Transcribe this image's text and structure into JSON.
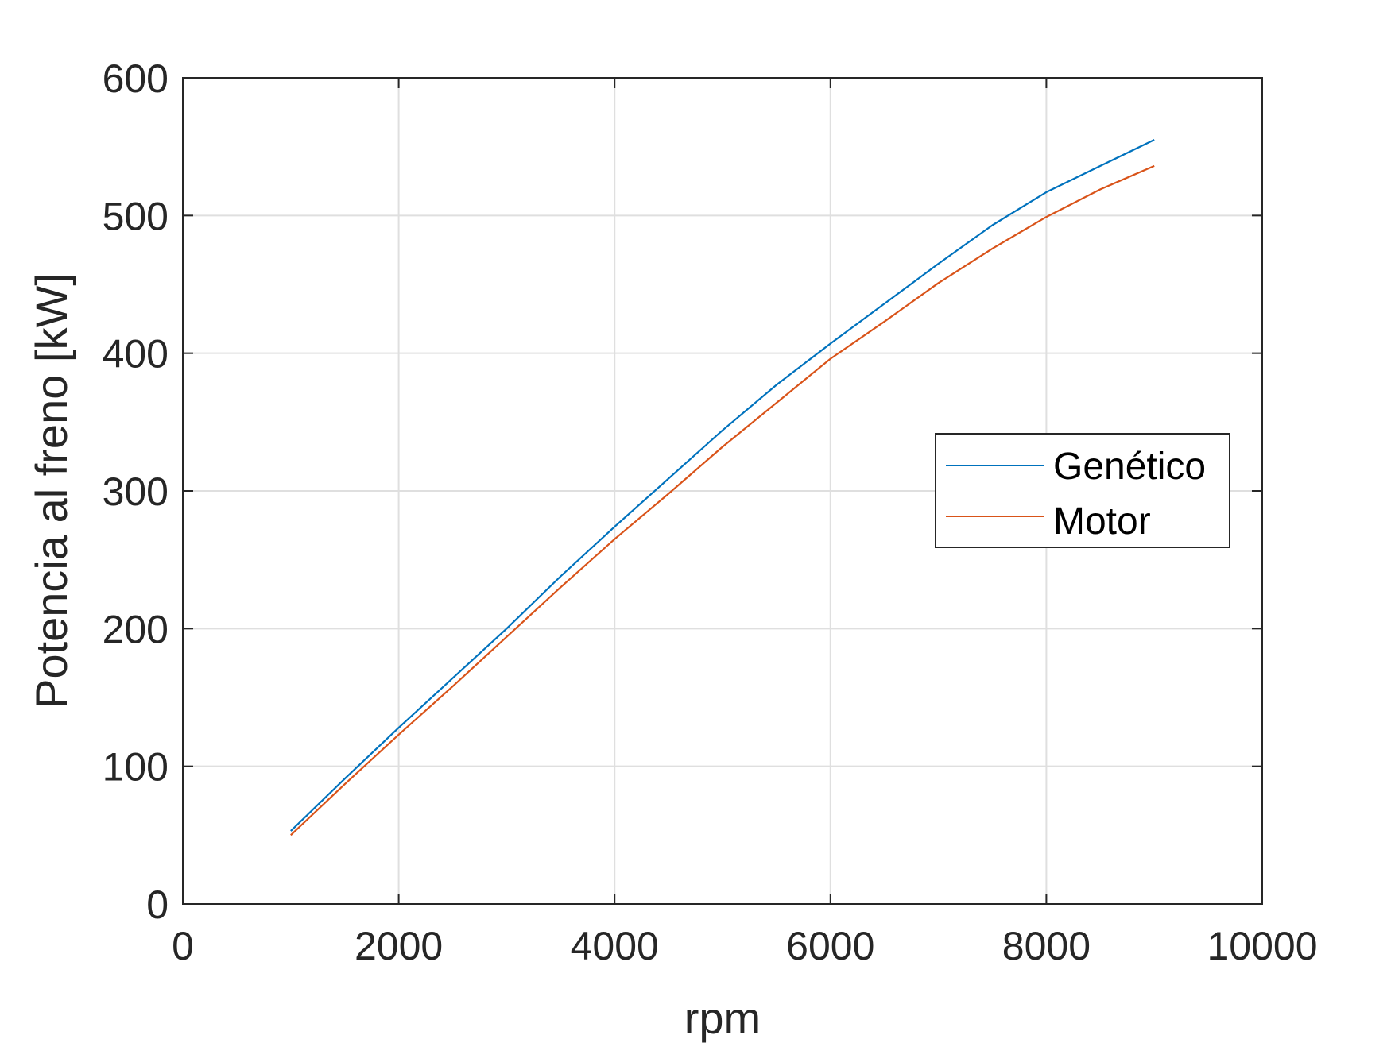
{
  "chart_data": {
    "type": "line",
    "xlabel": "rpm",
    "ylabel": "Potencia al freno [kW]",
    "xlim": [
      0,
      10000
    ],
    "ylim": [
      0,
      600
    ],
    "xticks": [
      0,
      2000,
      4000,
      6000,
      8000,
      10000
    ],
    "yticks": [
      0,
      100,
      200,
      300,
      400,
      500,
      600
    ],
    "xtick_labels": [
      "0",
      "2000",
      "4000",
      "6000",
      "8000",
      "10000"
    ],
    "ytick_labels": [
      "0",
      "100",
      "200",
      "300",
      "400",
      "500",
      "600"
    ],
    "grid": true,
    "legend_position": "right",
    "series": [
      {
        "name": "Genético",
        "color": "#0072BD",
        "x": [
          1000,
          1500,
          2000,
          2500,
          3000,
          3500,
          4000,
          4500,
          5000,
          5500,
          6000,
          6500,
          7000,
          7500,
          8000,
          8500,
          9000
        ],
        "y": [
          53,
          91,
          128,
          164,
          200,
          238,
          274,
          309,
          344,
          377,
          407,
          436,
          465,
          493,
          517,
          536,
          555
        ]
      },
      {
        "name": "Motor",
        "color": "#D95319",
        "x": [
          1000,
          1500,
          2000,
          2500,
          3000,
          3500,
          4000,
          4500,
          5000,
          5500,
          6000,
          6500,
          7000,
          7500,
          8000,
          8500,
          9000
        ],
        "y": [
          50,
          87,
          123,
          158,
          194,
          230,
          265,
          298,
          332,
          364,
          396,
          423,
          451,
          476,
          499,
          519,
          536
        ]
      }
    ]
  }
}
